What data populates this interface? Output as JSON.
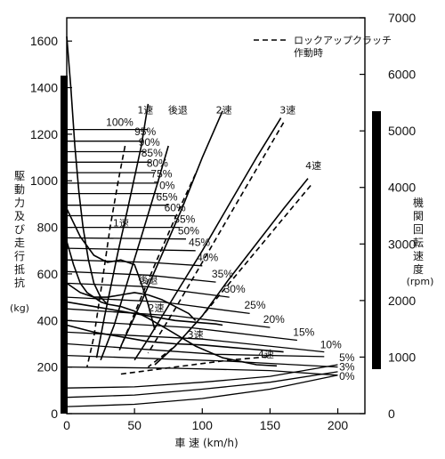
{
  "chart_data": {
    "type": "line",
    "title": "",
    "xlabel": "車 速 (km/h)",
    "ylabel_left_lines": [
      "駆",
      "動",
      "力",
      "及",
      "び",
      "走",
      "行",
      "抵",
      "抗"
    ],
    "ylabel_left_unit": "(kg)",
    "ylabel_right_lines": [
      "機",
      "関",
      "回",
      "転",
      "速",
      "度"
    ],
    "ylabel_right_unit": "(rpm)",
    "xlim": [
      0,
      220
    ],
    "ylim_left": [
      0,
      1700
    ],
    "ylim_right": [
      0,
      7000
    ],
    "xticks": [
      "0",
      "50",
      "100",
      "150",
      "200"
    ],
    "yticks_left": [
      "0",
      "200",
      "400",
      "600",
      "800",
      "1000",
      "1200",
      "1400",
      "1600"
    ],
    "yticks_right": [
      "0",
      "1000",
      "2000",
      "3000",
      "4000",
      "5000",
      "6000",
      "7000"
    ],
    "legend": {
      "text_lines": [
        "ロックアップクラッチ",
        "作動時"
      ],
      "style": "dashed"
    },
    "gear_labels": [
      {
        "text": "1速",
        "x": 58,
        "y": 1290
      },
      {
        "text": "後退",
        "x": 82,
        "y": 1290
      },
      {
        "text": "2速",
        "x": 116,
        "y": 1290
      },
      {
        "text": "3速",
        "x": 163,
        "y": 1290
      },
      {
        "text": "4速",
        "x": 182,
        "y": 1050
      },
      {
        "text": "1速",
        "x": 40,
        "y": 805
      },
      {
        "text": "後退",
        "x": 60,
        "y": 560
      },
      {
        "text": "2速",
        "x": 66,
        "y": 440
      },
      {
        "text": "3速",
        "x": 95,
        "y": 325
      },
      {
        "text": "4速",
        "x": 147,
        "y": 240
      }
    ],
    "throttle_labels": [
      {
        "text": "100%",
        "x": 29,
        "y": 1235
      },
      {
        "text": "95%",
        "x": 50,
        "y": 1195
      },
      {
        "text": "90%",
        "x": 53,
        "y": 1150
      },
      {
        "text": "85%",
        "x": 55,
        "y": 1105
      },
      {
        "text": "80%",
        "x": 59,
        "y": 1060
      },
      {
        "text": "75%",
        "x": 62,
        "y": 1015
      },
      {
        "text": "70%",
        "x": 64,
        "y": 965
      },
      {
        "text": "65%",
        "x": 66,
        "y": 915
      },
      {
        "text": "60%",
        "x": 72,
        "y": 870
      },
      {
        "text": "55%",
        "x": 79,
        "y": 820
      },
      {
        "text": "50%",
        "x": 82,
        "y": 770
      },
      {
        "text": "45%",
        "x": 90,
        "y": 720
      },
      {
        "text": "40%",
        "x": 96,
        "y": 655
      },
      {
        "text": "35%",
        "x": 107,
        "y": 585
      },
      {
        "text": "30%",
        "x": 116,
        "y": 520
      },
      {
        "text": "25%",
        "x": 131,
        "y": 450
      },
      {
        "text": "20%",
        "x": 145,
        "y": 390
      },
      {
        "text": "15%",
        "x": 167,
        "y": 335
      },
      {
        "text": "10%",
        "x": 187,
        "y": 280
      },
      {
        "text": "5%",
        "x": 201,
        "y": 225
      },
      {
        "text": "3%",
        "x": 201,
        "y": 185
      },
      {
        "text": "0%",
        "x": 201,
        "y": 145
      }
    ],
    "series": [
      {
        "kind": "throttle",
        "values": [
          [
            0,
            1220
          ],
          [
            60,
            1220
          ]
        ]
      },
      {
        "kind": "throttle",
        "values": [
          [
            0,
            1170
          ],
          [
            56,
            1170
          ]
        ]
      },
      {
        "kind": "throttle",
        "values": [
          [
            0,
            1125
          ],
          [
            58,
            1125
          ]
        ]
      },
      {
        "kind": "throttle",
        "values": [
          [
            0,
            1080
          ],
          [
            62,
            1080
          ]
        ]
      },
      {
        "kind": "throttle",
        "values": [
          [
            0,
            1035
          ],
          [
            65,
            1035
          ]
        ]
      },
      {
        "kind": "throttle",
        "values": [
          [
            0,
            990
          ],
          [
            67,
            990
          ]
        ]
      },
      {
        "kind": "throttle",
        "values": [
          [
            0,
            945
          ],
          [
            70,
            945
          ]
        ]
      },
      {
        "kind": "throttle",
        "values": [
          [
            0,
            895
          ],
          [
            75,
            895
          ]
        ]
      },
      {
        "kind": "throttle",
        "values": [
          [
            0,
            850
          ],
          [
            80,
            850
          ]
        ]
      },
      {
        "kind": "throttle",
        "values": [
          [
            0,
            800
          ],
          [
            83,
            800
          ]
        ]
      },
      {
        "kind": "throttle",
        "values": [
          [
            0,
            755
          ],
          [
            88,
            750
          ]
        ]
      },
      {
        "kind": "throttle",
        "values": [
          [
            0,
            710
          ],
          [
            95,
            700
          ]
        ]
      },
      {
        "kind": "throttle",
        "values": [
          [
            0,
            660
          ],
          [
            60,
            650
          ],
          [
            100,
            635
          ]
        ]
      },
      {
        "kind": "throttle",
        "values": [
          [
            0,
            610
          ],
          [
            60,
            595
          ],
          [
            110,
            565
          ]
        ]
      },
      {
        "kind": "throttle",
        "values": [
          [
            0,
            560
          ],
          [
            60,
            545
          ],
          [
            120,
            500
          ]
        ]
      },
      {
        "kind": "throttle",
        "values": [
          [
            0,
            500
          ],
          [
            70,
            480
          ],
          [
            135,
            430
          ]
        ]
      },
      {
        "kind": "throttle",
        "values": [
          [
            0,
            450
          ],
          [
            80,
            420
          ],
          [
            150,
            370
          ]
        ]
      },
      {
        "kind": "throttle",
        "values": [
          [
            0,
            400
          ],
          [
            90,
            370
          ],
          [
            170,
            315
          ]
        ]
      },
      {
        "kind": "throttle",
        "values": [
          [
            0,
            350
          ],
          [
            100,
            320
          ],
          [
            190,
            265
          ]
        ]
      },
      {
        "kind": "throttle",
        "values": [
          [
            0,
            300
          ],
          [
            110,
            255
          ],
          [
            190,
            245
          ]
        ]
      },
      {
        "kind": "throttle",
        "values": [
          [
            0,
            250
          ],
          [
            120,
            225
          ],
          [
            200,
            200
          ]
        ]
      },
      {
        "kind": "throttle",
        "values": [
          [
            0,
            200
          ],
          [
            80,
            195
          ],
          [
            150,
            185
          ],
          [
            200,
            165
          ]
        ]
      },
      {
        "kind": "resistance",
        "values": [
          [
            0,
            110
          ],
          [
            50,
            115
          ],
          [
            100,
            135
          ],
          [
            150,
            160
          ],
          [
            200,
            210
          ]
        ]
      },
      {
        "kind": "resistance",
        "values": [
          [
            0,
            70
          ],
          [
            50,
            80
          ],
          [
            100,
            105
          ],
          [
            150,
            135
          ],
          [
            200,
            180
          ]
        ]
      },
      {
        "kind": "resistance",
        "values": [
          [
            0,
            30
          ],
          [
            50,
            40
          ],
          [
            100,
            65
          ],
          [
            150,
            105
          ],
          [
            200,
            165
          ]
        ]
      },
      {
        "kind": "torque",
        "values": [
          [
            0,
            1620
          ],
          [
            3,
            1400
          ],
          [
            6,
            1150
          ],
          [
            9,
            950
          ],
          [
            12,
            800
          ],
          [
            16,
            660
          ],
          [
            20,
            560
          ],
          [
            25,
            500
          ],
          [
            30,
            470
          ]
        ]
      },
      {
        "kind": "torque",
        "values": [
          [
            0,
            740
          ],
          [
            5,
            640
          ],
          [
            10,
            560
          ],
          [
            15,
            520
          ],
          [
            20,
            500
          ],
          [
            25,
            480
          ],
          [
            30,
            470
          ],
          [
            40,
            460
          ],
          [
            50,
            440
          ],
          [
            60,
            410
          ],
          [
            75,
            360
          ],
          [
            95,
            290
          ],
          [
            115,
            240
          ],
          [
            140,
            210
          ],
          [
            155,
            205
          ]
        ]
      },
      {
        "kind": "torque",
        "values": [
          [
            0,
            880
          ],
          [
            10,
            760
          ],
          [
            20,
            680
          ],
          [
            30,
            650
          ],
          [
            40,
            660
          ],
          [
            50,
            640
          ],
          [
            55,
            560
          ],
          [
            60,
            470
          ],
          [
            65,
            360
          ]
        ]
      },
      {
        "kind": "torque",
        "values": [
          [
            0,
            560
          ],
          [
            10,
            520
          ],
          [
            20,
            500
          ],
          [
            30,
            500
          ],
          [
            40,
            510
          ],
          [
            50,
            520
          ],
          [
            60,
            510
          ],
          [
            70,
            490
          ],
          [
            80,
            460
          ],
          [
            90,
            430
          ],
          [
            95,
            400
          ]
        ]
      },
      {
        "kind": "torque",
        "values": [
          [
            0,
            480
          ],
          [
            20,
            460
          ],
          [
            40,
            440
          ],
          [
            60,
            420
          ],
          [
            80,
            400
          ],
          [
            100,
            390
          ],
          [
            110,
            385
          ],
          [
            115,
            380
          ]
        ]
      },
      {
        "kind": "torque",
        "values": [
          [
            0,
            380
          ],
          [
            20,
            350
          ],
          [
            40,
            330
          ],
          [
            60,
            310
          ],
          [
            80,
            300
          ],
          [
            100,
            295
          ],
          [
            120,
            285
          ],
          [
            140,
            275
          ],
          [
            160,
            265
          ]
        ]
      },
      {
        "kind": "rpm",
        "values": [
          [
            60,
            1330
          ],
          [
            55,
            1150
          ],
          [
            45,
            880
          ],
          [
            38,
            700
          ],
          [
            33,
            560
          ],
          [
            28,
            420
          ],
          [
            22,
            240
          ]
        ]
      },
      {
        "kind": "rpm",
        "values": [
          [
            75,
            1150
          ],
          [
            67,
            990
          ],
          [
            55,
            760
          ],
          [
            45,
            570
          ],
          [
            35,
            380
          ],
          [
            25,
            230
          ]
        ]
      },
      {
        "kind": "rpm",
        "values": [
          [
            115,
            1300
          ],
          [
            100,
            1100
          ],
          [
            85,
            880
          ],
          [
            70,
            680
          ],
          [
            55,
            480
          ],
          [
            40,
            290
          ]
        ]
      },
      {
        "kind": "rpm",
        "values": [
          [
            158,
            1270
          ],
          [
            140,
            1100
          ],
          [
            120,
            900
          ],
          [
            100,
            700
          ],
          [
            80,
            510
          ],
          [
            60,
            320
          ],
          [
            50,
            230
          ]
        ]
      },
      {
        "kind": "rpm",
        "values": [
          [
            178,
            1010
          ],
          [
            160,
            880
          ],
          [
            140,
            730
          ],
          [
            120,
            580
          ],
          [
            100,
            420
          ],
          [
            80,
            290
          ],
          [
            65,
            210
          ]
        ]
      },
      {
        "kind": "lockup",
        "values": [
          [
            43,
            1150
          ],
          [
            38,
            1000
          ],
          [
            32,
            800
          ],
          [
            26,
            560
          ],
          [
            20,
            330
          ],
          [
            15,
            200
          ]
        ]
      },
      {
        "kind": "lockup",
        "values": [
          [
            95,
            1030
          ],
          [
            80,
            840
          ],
          [
            65,
            640
          ],
          [
            50,
            430
          ],
          [
            38,
            260
          ]
        ]
      },
      {
        "kind": "lockup",
        "values": [
          [
            160,
            1250
          ],
          [
            140,
            1050
          ],
          [
            120,
            850
          ],
          [
            100,
            650
          ],
          [
            80,
            450
          ],
          [
            60,
            260
          ]
        ]
      },
      {
        "kind": "lockup",
        "values": [
          [
            180,
            980
          ],
          [
            160,
            840
          ],
          [
            140,
            700
          ],
          [
            120,
            560
          ],
          [
            100,
            420
          ],
          [
            80,
            290
          ],
          [
            60,
            200
          ]
        ]
      },
      {
        "kind": "lockup",
        "values": [
          [
            40,
            170
          ],
          [
            80,
            200
          ],
          [
            120,
            230
          ],
          [
            150,
            245
          ]
        ]
      }
    ]
  }
}
